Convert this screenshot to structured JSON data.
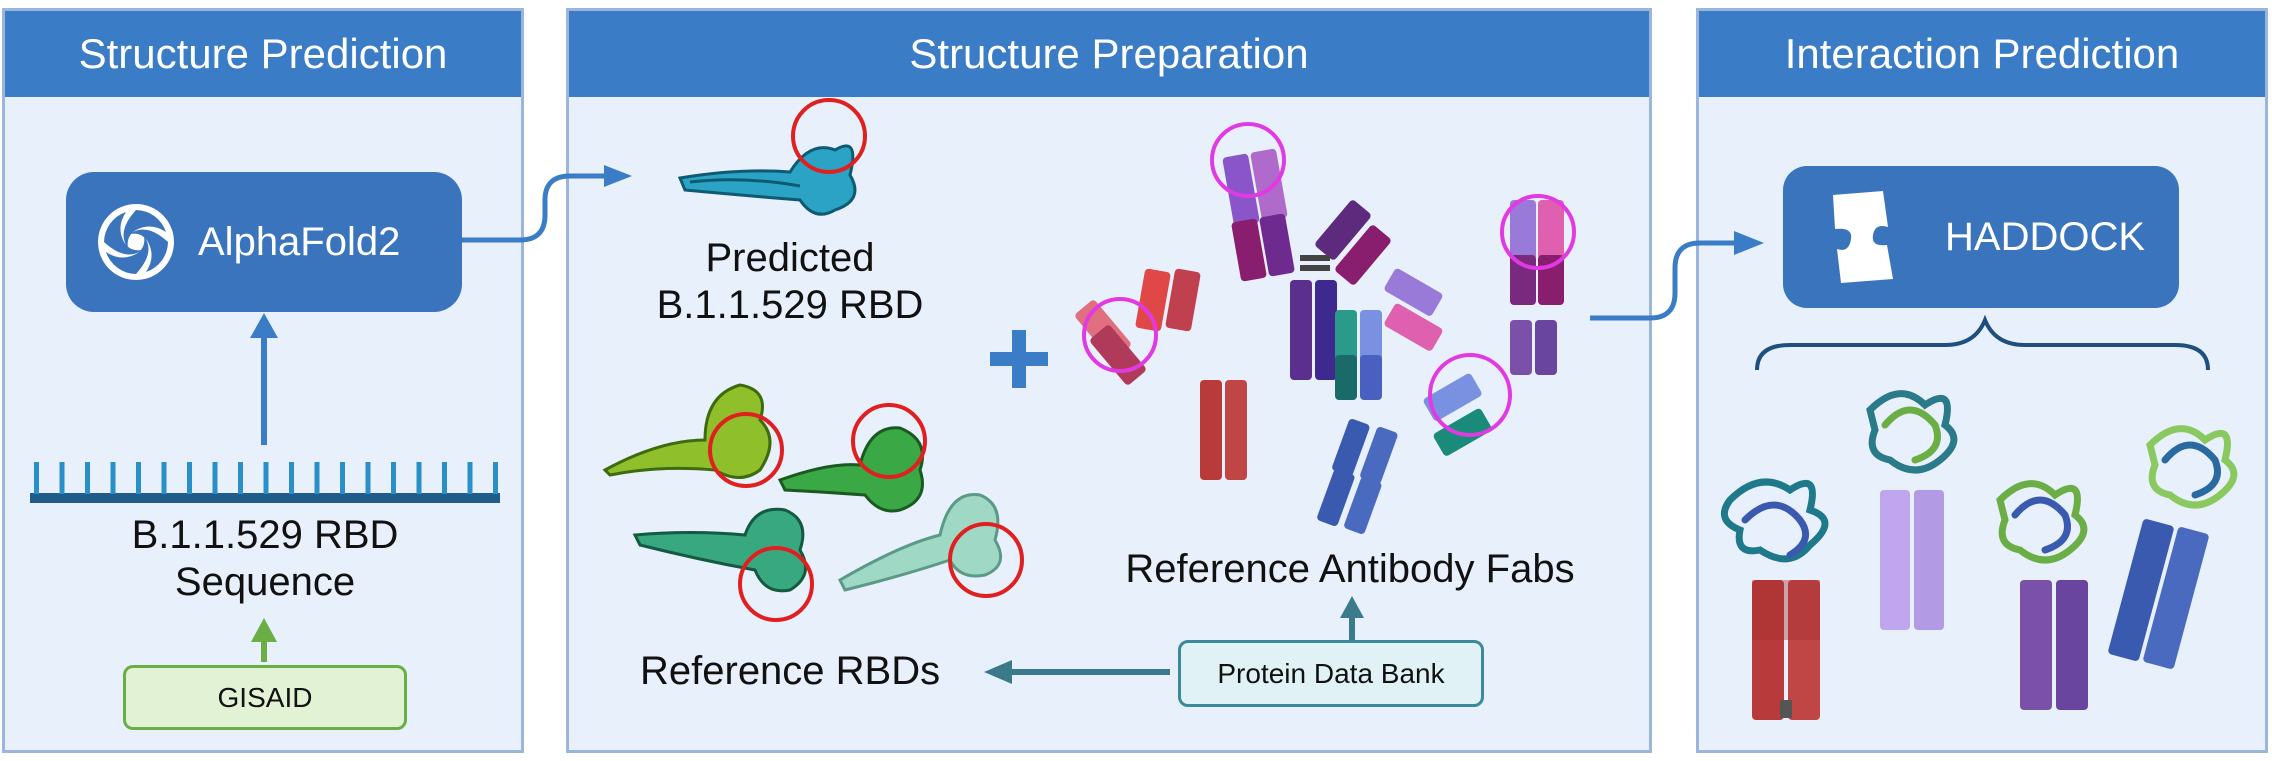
{
  "panels": {
    "structure_prediction": {
      "title": "Structure Prediction"
    },
    "structure_preparation": {
      "title": "Structure Preparation"
    },
    "interaction_prediction": {
      "title": "Interaction Prediction"
    }
  },
  "prediction": {
    "tool_label": "AlphaFold2",
    "sequence_label_line1": "B.1.1.529 RBD",
    "sequence_label_line2": "Sequence",
    "source_label": "GISAID"
  },
  "preparation": {
    "predicted_line1": "Predicted",
    "predicted_line2": "B.1.1.529 RBD",
    "reference_rbds_label": "Reference RBDs",
    "reference_fabs_label": "Reference Antibody Fabs",
    "database_label": "Protein Data Bank"
  },
  "interaction": {
    "tool_label": "HADDOCK"
  },
  "colors": {
    "header_blue": "#3a7cc5",
    "panel_bg": "#e8f0fb",
    "arrow_blue": "#3a7cc5",
    "arrow_green": "#6aae45",
    "epitope_red": "#e02020",
    "paratope_magenta": "#e23ae2"
  }
}
